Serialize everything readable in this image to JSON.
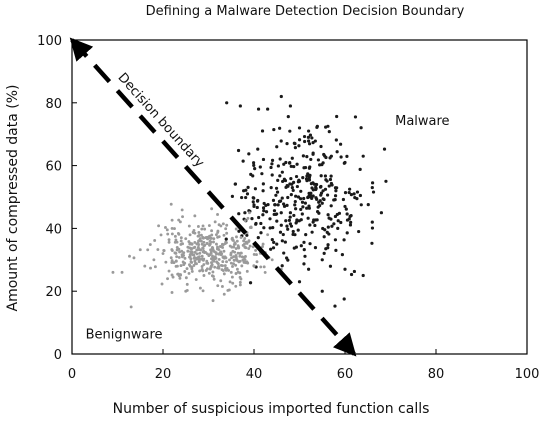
{
  "chart_data": {
    "type": "scatter",
    "title": "Defining a Malware Detection Decision Boundary",
    "xlabel": "Number of suspicious imported function calls",
    "ylabel": "Amount of compressed data (%)",
    "xlim": [
      0,
      100
    ],
    "ylim": [
      0,
      100
    ],
    "x_ticks": [
      0,
      20,
      40,
      60,
      80,
      100
    ],
    "y_ticks": [
      0,
      20,
      40,
      60,
      80,
      100
    ],
    "grid": false,
    "annotations": [
      {
        "id": "malware",
        "text": "Malware",
        "x": 77,
        "y": 73
      },
      {
        "id": "benignware",
        "text": "Benignware",
        "x": 3,
        "y": 5
      },
      {
        "id": "boundary",
        "text": "Decision boundary",
        "x": 10,
        "y": 88
      }
    ],
    "decision_boundary": {
      "label": "Decision boundary",
      "start": [
        0,
        100
      ],
      "end": [
        62,
        0
      ],
      "style": "dashed, arrowheads at both ends"
    },
    "colors": {
      "malware": "#1a1a1a",
      "benignware": "#9a9a9a",
      "axis": "#000000"
    },
    "series": [
      {
        "name": "Malware",
        "point_count": 380,
        "center": [
          50,
          50
        ],
        "spread": [
          7,
          11
        ],
        "x_range": [
          33,
          70
        ],
        "y_range": [
          15,
          83
        ],
        "seed": 17,
        "values": [
          [
            34,
            80
          ],
          [
            37,
            79
          ],
          [
            41,
            78
          ],
          [
            43,
            78
          ],
          [
            46,
            82
          ],
          [
            48,
            79
          ],
          [
            50,
            72
          ],
          [
            52,
            71
          ],
          [
            49,
            67
          ],
          [
            45,
            66
          ],
          [
            53,
            64
          ],
          [
            57,
            63
          ],
          [
            60,
            61
          ],
          [
            64,
            63
          ],
          [
            66,
            53
          ],
          [
            69,
            55
          ],
          [
            68,
            45
          ],
          [
            66,
            42
          ],
          [
            63,
            39
          ],
          [
            58,
            33
          ],
          [
            55,
            30
          ],
          [
            52,
            27
          ],
          [
            50,
            23
          ],
          [
            55,
            20
          ],
          [
            60,
            27
          ],
          [
            64,
            25
          ],
          [
            45,
            35
          ],
          [
            40,
            47
          ],
          [
            38,
            45
          ],
          [
            42,
            52
          ],
          [
            44,
            57
          ],
          [
            47,
            61
          ],
          [
            50,
            55
          ],
          [
            52,
            50
          ],
          [
            55,
            48
          ],
          [
            58,
            52
          ],
          [
            60,
            47
          ],
          [
            62,
            51
          ],
          [
            48,
            45
          ],
          [
            46,
            41
          ],
          [
            49,
            38
          ],
          [
            53,
            42
          ]
        ]
      },
      {
        "name": "Benignware",
        "point_count": 430,
        "center": [
          30,
          32
        ],
        "spread": [
          6.2,
          4.8
        ],
        "x_range": [
          9,
          48
        ],
        "y_range": [
          13,
          50
        ],
        "seed": 91,
        "values": [
          [
            9,
            26
          ],
          [
            11,
            26
          ],
          [
            13,
            15
          ],
          [
            16,
            28
          ],
          [
            18,
            30
          ],
          [
            20,
            32
          ],
          [
            21,
            24
          ],
          [
            22,
            40
          ],
          [
            24,
            36
          ],
          [
            26,
            28
          ],
          [
            27,
            34
          ],
          [
            28,
            31
          ],
          [
            29,
            25
          ],
          [
            30,
            37
          ],
          [
            31,
            33
          ],
          [
            32,
            29
          ],
          [
            34,
            41
          ],
          [
            35,
            26
          ],
          [
            36,
            31
          ],
          [
            38,
            34
          ],
          [
            40,
            28
          ],
          [
            42,
            35
          ],
          [
            44,
            30
          ],
          [
            46,
            27
          ],
          [
            39,
            45
          ],
          [
            33,
            47
          ],
          [
            27,
            44
          ],
          [
            25,
            20
          ],
          [
            31,
            17
          ],
          [
            37,
            22
          ],
          [
            43,
            38
          ],
          [
            23,
            31
          ]
        ]
      }
    ]
  }
}
